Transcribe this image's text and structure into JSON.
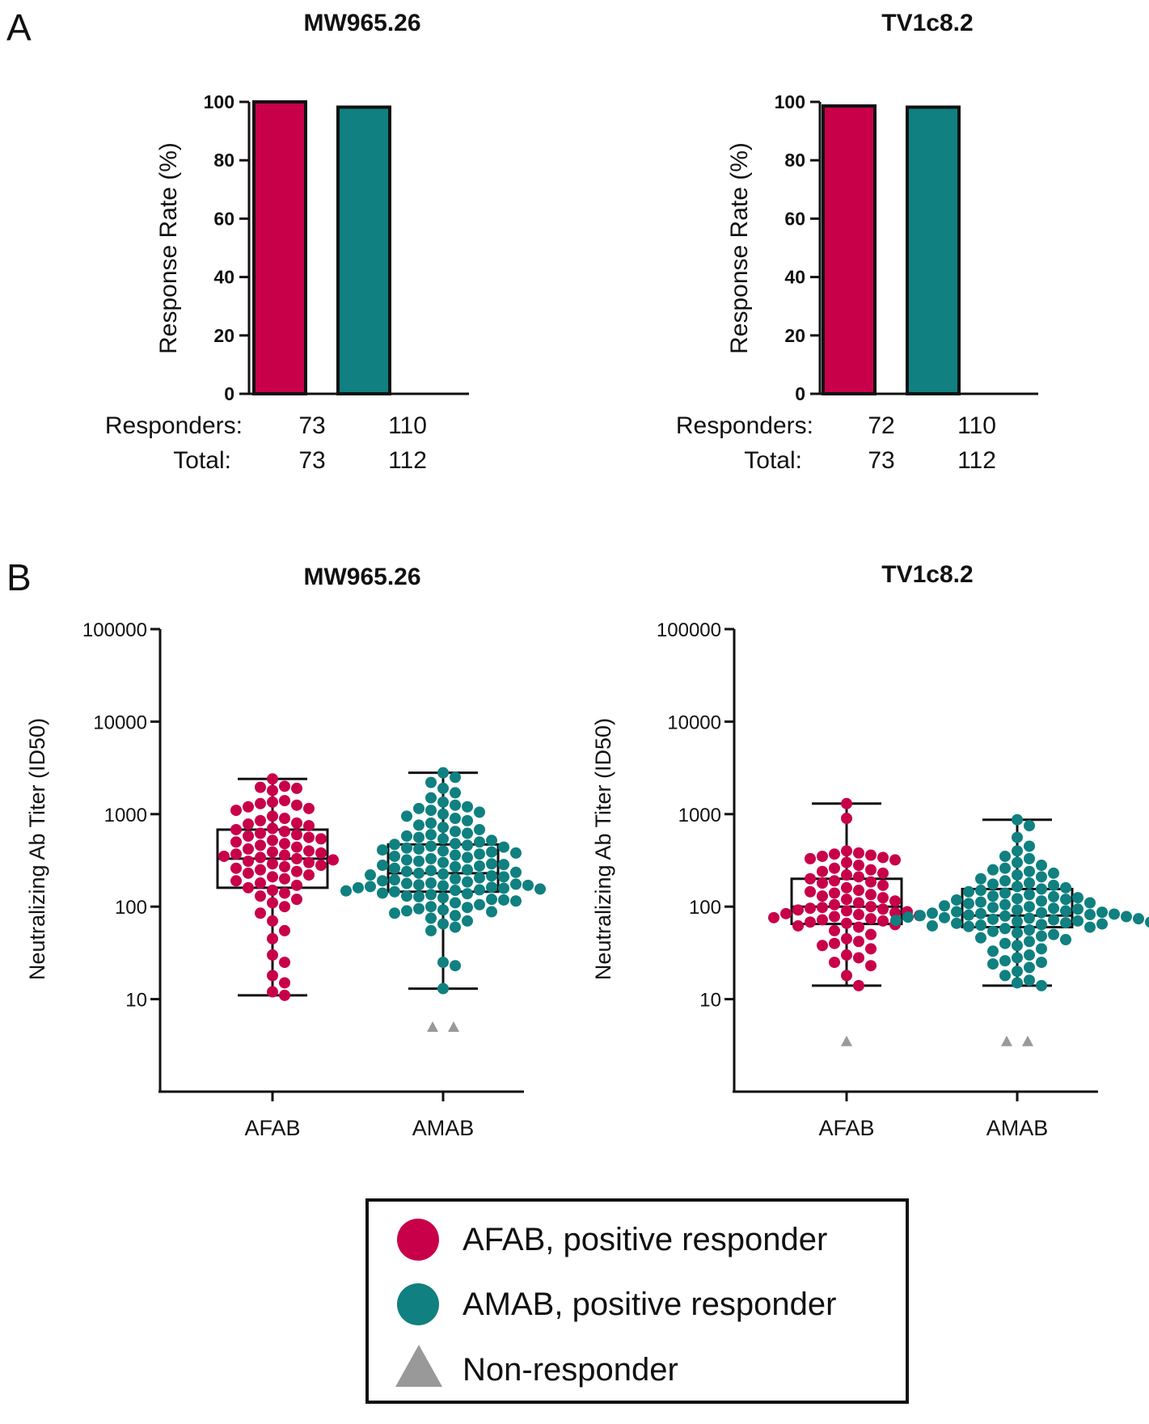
{
  "panels": {
    "a": "A",
    "b": "B"
  },
  "colors": {
    "afab": "#C8004A",
    "amab": "#108080",
    "nonresponder": "#999999",
    "axis": "#111111"
  },
  "chart_data": [
    {
      "type": "bar",
      "title": "MW965.26",
      "ylabel": "Response Rate (%)",
      "ylim": [
        0,
        100
      ],
      "yticks": [
        0,
        20,
        40,
        60,
        80,
        100
      ],
      "categories": [
        "AFAB",
        "AMAB"
      ],
      "values": [
        100.0,
        98.2
      ],
      "row_labels": [
        "Responders:",
        "Total:"
      ],
      "responders": [
        "73",
        "110"
      ],
      "totals": [
        "73",
        "112"
      ]
    },
    {
      "type": "bar",
      "title": "TV1c8.2",
      "ylabel": "Response Rate (%)",
      "ylim": [
        0,
        100
      ],
      "yticks": [
        0,
        20,
        40,
        60,
        80,
        100
      ],
      "categories": [
        "AFAB",
        "AMAB"
      ],
      "values": [
        98.6,
        98.2
      ],
      "row_labels": [
        "Responders:",
        "Total:"
      ],
      "responders": [
        "72",
        "110"
      ],
      "totals": [
        "73",
        "112"
      ]
    },
    {
      "type": "scatter",
      "title": "MW965.26",
      "ylabel": "Neutralizing Ab Titer (ID50)",
      "yscale": "log",
      "ylim": [
        1,
        100000
      ],
      "yticks": [
        "10",
        "100",
        "1000",
        "10000",
        "100000"
      ],
      "categories": [
        "AFAB",
        "AMAB"
      ],
      "boxes": [
        {
          "min": 11,
          "q1": 160,
          "median": 330,
          "q3": 680,
          "max": 2400
        },
        {
          "min": 13,
          "q1": 145,
          "median": 230,
          "q3": 470,
          "max": 2800
        }
      ],
      "series": [
        {
          "name": "AFAB",
          "values": [
            2400,
            2000,
            1950,
            1900,
            1800,
            1400,
            1350,
            1300,
            1250,
            1200,
            1150,
            1100,
            950,
            900,
            850,
            800,
            780,
            750,
            700,
            680,
            650,
            620,
            600,
            580,
            560,
            540,
            520,
            500,
            480,
            460,
            440,
            420,
            400,
            390,
            380,
            370,
            360,
            350,
            340,
            330,
            320,
            310,
            300,
            290,
            280,
            270,
            260,
            250,
            240,
            230,
            220,
            210,
            200,
            190,
            180,
            170,
            160,
            150,
            140,
            130,
            120,
            110,
            100,
            85,
            70,
            55,
            45,
            30,
            25,
            18,
            15,
            12,
            11
          ]
        },
        {
          "name": "AMAB",
          "values": [
            2800,
            2500,
            2200,
            1900,
            1700,
            1500,
            1350,
            1250,
            1200,
            1150,
            1100,
            1050,
            1000,
            950,
            900,
            850,
            800,
            760,
            720,
            680,
            650,
            620,
            600,
            580,
            560,
            540,
            520,
            500,
            480,
            470,
            460,
            450,
            440,
            430,
            420,
            410,
            400,
            390,
            380,
            370,
            360,
            350,
            340,
            330,
            320,
            310,
            300,
            290,
            285,
            280,
            275,
            270,
            260,
            250,
            245,
            240,
            235,
            230,
            225,
            220,
            215,
            210,
            205,
            200,
            195,
            190,
            185,
            180,
            178,
            175,
            172,
            170,
            168,
            165,
            162,
            160,
            158,
            155,
            152,
            150,
            148,
            145,
            140,
            138,
            135,
            130,
            128,
            125,
            120,
            118,
            115,
            110,
            105,
            100,
            98,
            95,
            92,
            90,
            88,
            85,
            80,
            75,
            70,
            65,
            60,
            55,
            25,
            23,
            13,
            5,
            5,
            5
          ]
        },
        {
          "name": "Non-responder",
          "group": "AMAB",
          "count": 2,
          "value": 5
        }
      ]
    },
    {
      "type": "scatter",
      "title": "TV1c8.2",
      "ylabel": "Neutralizing Ab Titer (ID50)",
      "yscale": "log",
      "ylim": [
        1,
        100000
      ],
      "yticks": [
        "10",
        "100",
        "1000",
        "10000",
        "100000"
      ],
      "categories": [
        "AFAB",
        "AMAB"
      ],
      "boxes": [
        {
          "min": 14,
          "q1": 65,
          "median": 100,
          "q3": 200,
          "max": 1300
        },
        {
          "min": 14,
          "q1": 60,
          "median": 80,
          "q3": 155,
          "max": 870
        }
      ],
      "series": [
        {
          "name": "AFAB",
          "values": [
            1300,
            900,
            400,
            380,
            370,
            360,
            350,
            340,
            330,
            320,
            300,
            280,
            260,
            250,
            240,
            230,
            220,
            210,
            200,
            190,
            185,
            180,
            170,
            160,
            150,
            145,
            140,
            135,
            130,
            125,
            120,
            115,
            110,
            105,
            100,
            98,
            96,
            94,
            92,
            90,
            88,
            86,
            84,
            82,
            80,
            78,
            76,
            74,
            72,
            70,
            68,
            66,
            64,
            62,
            60,
            55,
            50,
            45,
            42,
            40,
            38,
            35,
            30,
            28,
            25,
            23,
            18,
            14
          ]
        },
        {
          "name": "AMAB",
          "values": [
            870,
            750,
            560,
            450,
            400,
            350,
            330,
            300,
            280,
            260,
            250,
            240,
            230,
            220,
            210,
            200,
            190,
            180,
            175,
            170,
            165,
            160,
            155,
            150,
            145,
            140,
            135,
            130,
            128,
            125,
            122,
            120,
            118,
            115,
            112,
            110,
            108,
            105,
            102,
            100,
            98,
            96,
            94,
            92,
            90,
            88,
            87,
            86,
            85,
            84,
            83,
            82,
            81,
            80,
            79,
            78,
            77,
            76,
            75,
            74,
            73,
            72,
            71,
            70,
            69,
            68,
            67,
            66,
            65,
            64,
            63,
            62,
            61,
            60,
            58,
            56,
            54,
            52,
            50,
            48,
            46,
            44,
            42,
            40,
            38,
            35,
            33,
            30,
            28,
            26,
            25,
            24,
            22,
            20,
            18,
            16,
            15,
            14
          ]
        },
        {
          "name": "Non-responder",
          "groups": [
            "AFAB",
            "AMAB",
            "AMAB"
          ],
          "value": 3.5
        }
      ]
    }
  ],
  "legend": {
    "items": [
      "AFAB, positive responder",
      "AMAB, positive responder",
      "Non-responder"
    ]
  }
}
